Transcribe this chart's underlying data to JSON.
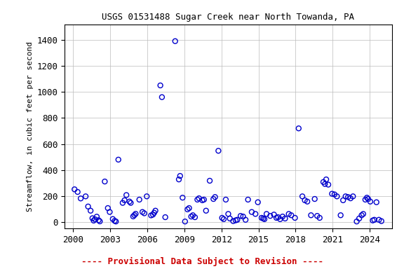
{
  "title": "USGS 01531488 Sugar Creek near North Towanda, PA",
  "ylabel": "Streamflow, in cubic feet per second",
  "footnote": "---- Provisional Data Subject to Revision ----",
  "footnote_color": "#cc0000",
  "marker_color": "#0000cc",
  "marker_facecolor": "none",
  "marker": "o",
  "marker_size": 5,
  "marker_linewidth": 1.0,
  "xlim": [
    1999.3,
    2025.8
  ],
  "ylim": [
    -50,
    1520
  ],
  "yticks": [
    0,
    200,
    400,
    600,
    800,
    1000,
    1200,
    1400
  ],
  "xticks": [
    2000,
    2003,
    2006,
    2009,
    2012,
    2015,
    2018,
    2021,
    2024
  ],
  "tick_fontsize": 9,
  "title_fontsize": 9,
  "ylabel_fontsize": 8,
  "footnote_fontsize": 9,
  "background_color": "#ffffff",
  "data": [
    [
      2000.1,
      252
    ],
    [
      2000.35,
      232
    ],
    [
      2000.6,
      182
    ],
    [
      2001.0,
      198
    ],
    [
      2001.2,
      120
    ],
    [
      2001.4,
      88
    ],
    [
      2001.55,
      30
    ],
    [
      2001.65,
      12
    ],
    [
      2001.75,
      22
    ],
    [
      2001.9,
      42
    ],
    [
      2002.05,
      15
    ],
    [
      2002.15,
      6
    ],
    [
      2002.55,
      312
    ],
    [
      2002.8,
      108
    ],
    [
      2002.95,
      78
    ],
    [
      2003.2,
      24
    ],
    [
      2003.35,
      10
    ],
    [
      2003.45,
      5
    ],
    [
      2003.65,
      480
    ],
    [
      2004.0,
      148
    ],
    [
      2004.15,
      168
    ],
    [
      2004.3,
      208
    ],
    [
      2004.55,
      158
    ],
    [
      2004.65,
      148
    ],
    [
      2004.85,
      44
    ],
    [
      2004.95,
      54
    ],
    [
      2005.05,
      64
    ],
    [
      2005.35,
      173
    ],
    [
      2005.6,
      78
    ],
    [
      2005.75,
      68
    ],
    [
      2005.95,
      198
    ],
    [
      2006.3,
      52
    ],
    [
      2006.45,
      58
    ],
    [
      2006.55,
      72
    ],
    [
      2006.65,
      88
    ],
    [
      2007.05,
      1050
    ],
    [
      2007.18,
      960
    ],
    [
      2007.45,
      38
    ],
    [
      2008.25,
      1390
    ],
    [
      2008.55,
      328
    ],
    [
      2008.65,
      355
    ],
    [
      2008.85,
      188
    ],
    [
      2009.05,
      5
    ],
    [
      2009.25,
      98
    ],
    [
      2009.38,
      108
    ],
    [
      2009.55,
      43
    ],
    [
      2009.68,
      53
    ],
    [
      2009.85,
      38
    ],
    [
      2010.05,
      173
    ],
    [
      2010.18,
      183
    ],
    [
      2010.45,
      168
    ],
    [
      2010.58,
      173
    ],
    [
      2010.75,
      88
    ],
    [
      2011.05,
      318
    ],
    [
      2011.35,
      178
    ],
    [
      2011.48,
      193
    ],
    [
      2011.75,
      548
    ],
    [
      2012.05,
      33
    ],
    [
      2012.18,
      23
    ],
    [
      2012.35,
      173
    ],
    [
      2012.55,
      63
    ],
    [
      2012.68,
      28
    ],
    [
      2012.95,
      8
    ],
    [
      2013.15,
      14
    ],
    [
      2013.28,
      18
    ],
    [
      2013.55,
      48
    ],
    [
      2013.75,
      43
    ],
    [
      2013.95,
      18
    ],
    [
      2014.15,
      173
    ],
    [
      2014.45,
      78
    ],
    [
      2014.75,
      63
    ],
    [
      2014.95,
      153
    ],
    [
      2015.25,
      33
    ],
    [
      2015.38,
      28
    ],
    [
      2015.48,
      23
    ],
    [
      2015.65,
      63
    ],
    [
      2015.95,
      48
    ],
    [
      2016.25,
      58
    ],
    [
      2016.45,
      33
    ],
    [
      2016.58,
      38
    ],
    [
      2016.75,
      23
    ],
    [
      2016.95,
      43
    ],
    [
      2017.15,
      28
    ],
    [
      2017.45,
      63
    ],
    [
      2017.65,
      53
    ],
    [
      2017.95,
      33
    ],
    [
      2018.25,
      720
    ],
    [
      2018.55,
      198
    ],
    [
      2018.75,
      168
    ],
    [
      2018.95,
      158
    ],
    [
      2019.25,
      53
    ],
    [
      2019.55,
      178
    ],
    [
      2019.75,
      48
    ],
    [
      2019.95,
      33
    ],
    [
      2020.25,
      308
    ],
    [
      2020.38,
      293
    ],
    [
      2020.48,
      328
    ],
    [
      2020.65,
      288
    ],
    [
      2020.95,
      218
    ],
    [
      2021.15,
      213
    ],
    [
      2021.35,
      198
    ],
    [
      2021.65,
      53
    ],
    [
      2021.85,
      168
    ],
    [
      2022.05,
      198
    ],
    [
      2022.25,
      193
    ],
    [
      2022.45,
      183
    ],
    [
      2022.65,
      198
    ],
    [
      2022.95,
      5
    ],
    [
      2023.15,
      28
    ],
    [
      2023.35,
      53
    ],
    [
      2023.48,
      63
    ],
    [
      2023.65,
      173
    ],
    [
      2023.78,
      188
    ],
    [
      2023.88,
      178
    ],
    [
      2024.05,
      158
    ],
    [
      2024.25,
      13
    ],
    [
      2024.38,
      18
    ],
    [
      2024.55,
      153
    ],
    [
      2024.75,
      18
    ],
    [
      2024.95,
      8
    ]
  ]
}
